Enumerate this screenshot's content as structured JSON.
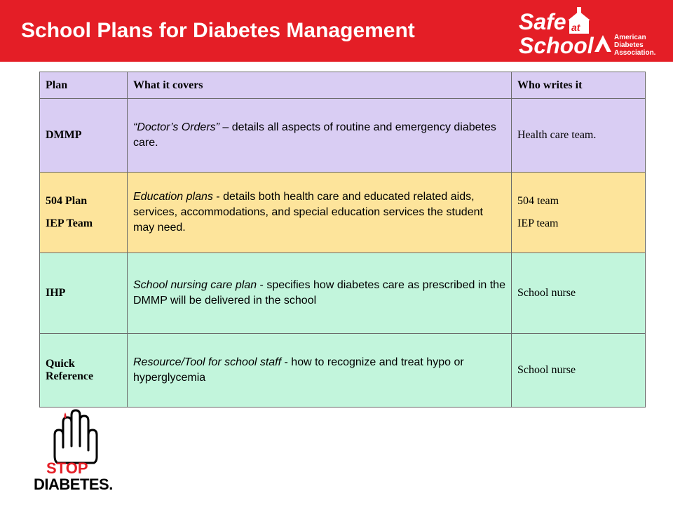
{
  "slide": {
    "title": "School Plans for Diabetes Management"
  },
  "logo": {
    "safe": "Safe",
    "at": "at",
    "school": "School",
    "org1": "American",
    "org2": "Diabetes",
    "org3": "Association."
  },
  "table": {
    "headers": {
      "plan": "Plan",
      "covers": "What it covers",
      "who": "Who writes it"
    },
    "dmmp": {
      "plan": "DMMP",
      "cover_lead": "“Doctor’s Orders”",
      "cover_rest": " – details all aspects of routine and emergency diabetes care.",
      "who": "Health care team."
    },
    "plan504": {
      "plan1": "504 Plan",
      "plan2": "IEP Team",
      "cover_lead": "Education plans",
      "cover_rest": " - details both health care and educated related aids, services, accommodations, and special education services the student may need.",
      "who1": "504 team",
      "who2": "IEP team"
    },
    "ihp": {
      "plan": "IHP",
      "cover_lead": "School nursing care plan",
      "cover_rest": " -  specifies how diabetes care as prescribed in the DMMP will be delivered in the school",
      "who": "School nurse"
    },
    "quick": {
      "plan": "Quick Reference",
      "cover_lead": "Resource/Tool for school staff",
      "cover_rest": " -  how to recognize and treat hypo or hyperglycemia",
      "who": "School nurse"
    }
  },
  "stop_logo": {
    "line1": "STOP",
    "line2": "DIABETES."
  },
  "colors": {
    "header_red": "#e41e26",
    "lavender": "#d9cdf3",
    "yellow": "#fde49b",
    "mint": "#c2f5dc"
  }
}
